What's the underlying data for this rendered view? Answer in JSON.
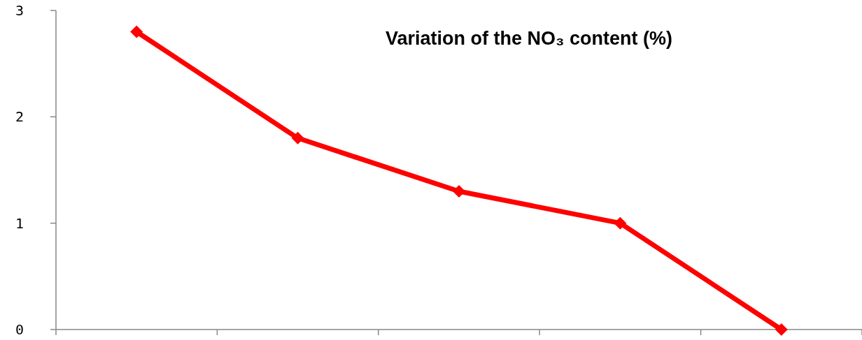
{
  "chart_data": {
    "type": "line",
    "title": "Variation of the NO₃ content (%)",
    "categories": [
      null,
      null,
      null,
      null,
      null
    ],
    "series": [
      {
        "color": "#ff0000",
        "values": [
          2.8,
          1.8,
          1.3,
          1.0,
          0
        ]
      }
    ],
    "ylim": [
      0,
      3
    ],
    "yticks": [
      0,
      1,
      2,
      3
    ],
    "grid": false,
    "marker": "diamond",
    "line_style": "solid"
  }
}
